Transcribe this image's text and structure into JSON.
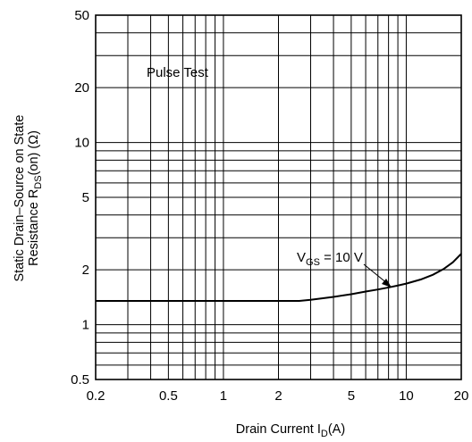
{
  "chart_data": {
    "type": "line",
    "xscale": "log",
    "yscale": "log",
    "xlim": [
      0.2,
      20
    ],
    "ylim": [
      0.5,
      50
    ],
    "grid": true,
    "xticks": [
      {
        "value": 0.2,
        "label": "0.2"
      },
      {
        "value": 0.5,
        "label": "0.5"
      },
      {
        "value": 1,
        "label": "1"
      },
      {
        "value": 2,
        "label": "2"
      },
      {
        "value": 5,
        "label": "5"
      },
      {
        "value": 10,
        "label": "10"
      },
      {
        "value": 20,
        "label": "20"
      }
    ],
    "yticks": [
      {
        "value": 0.5,
        "label": "0.5"
      },
      {
        "value": 1,
        "label": "1"
      },
      {
        "value": 2,
        "label": "2"
      },
      {
        "value": 5,
        "label": "5"
      },
      {
        "value": 10,
        "label": "10"
      },
      {
        "value": 20,
        "label": "20"
      },
      {
        "value": 50,
        "label": "50"
      }
    ],
    "xlabel": "Drain Current I",
    "xlabel_sub": "D",
    "xlabel_unit": "(A)",
    "ylabel_line1": "Static Drain–Source on State",
    "ylabel_line2_pre": "Resistance R",
    "ylabel_line2_sub": "DS",
    "ylabel_line2_post": "(on) (Ω)",
    "annotations": {
      "pulse_test": "Pulse Test",
      "curve_label_main": "V",
      "curve_label_sub": "GS",
      "curve_label_post": " = 10 V"
    },
    "series": [
      {
        "x": [
          0.2,
          0.5,
          1,
          2,
          2.6,
          3,
          4,
          5,
          6,
          7,
          8,
          9,
          10,
          12,
          14,
          16,
          18,
          20
        ],
        "y": [
          1.35,
          1.35,
          1.35,
          1.35,
          1.35,
          1.37,
          1.42,
          1.47,
          1.52,
          1.56,
          1.6,
          1.64,
          1.68,
          1.77,
          1.88,
          2.02,
          2.2,
          2.45
        ]
      }
    ]
  }
}
